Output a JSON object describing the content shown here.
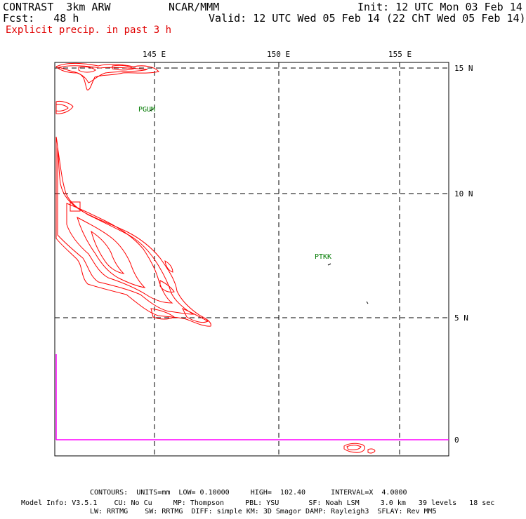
{
  "header": {
    "model_title": "CONTRAST  3km ARW",
    "center": "NCAR/MMM",
    "init": "Init: 12 UTC Mon 03 Feb 14",
    "fcst": "Fcst:   48 h",
    "valid": "Valid: 12 UTC Wed 05 Feb 14 (22 ChT Wed 05 Feb 14)",
    "field": "Explicit precip. in past 3 h"
  },
  "map": {
    "lon_labels": [
      "145 E",
      "150 E",
      "155 E"
    ],
    "lat_labels": [
      "15 N",
      "10 N",
      "5 N",
      "0"
    ],
    "stations": [
      "PGUM",
      "PTKK"
    ],
    "colors": {
      "contour": "#ff0000",
      "grid": "#000000",
      "boundary": "#ff00ff",
      "station": "#007a00"
    }
  },
  "footer": {
    "contours": "CONTOURS:  UNITS=mm  LOW= 0.10000     HIGH=  102.40      INTERVAL=X  4.0000",
    "model_info_1": "Model Info: V3.5.1    CU: No Cu     MP: Thompson     PBL: YSU       SF: Noah LSM     3.0 km   39 levels   18 sec",
    "model_info_2": "LW: RRTMG    SW: RRTMG  DIFF: simple KM: 3D Smagor DAMP: Rayleigh3  SFLAY: Rev MM5"
  }
}
